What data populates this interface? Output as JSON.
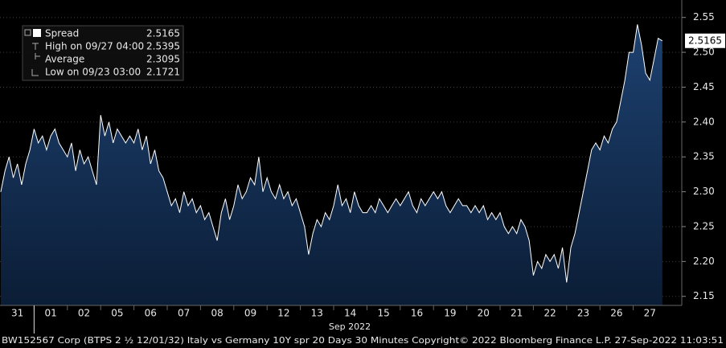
{
  "chart_data": {
    "type": "area",
    "footer": "BW152567 Corp (BTPS 2 ½ 12/01/32) Italy vs Germany 10Y spr 20 Days 30 Minutes  Copyright© 2022 Bloomberg Finance L.P.  27-Sep-2022 11:03:51",
    "x_label": "Sep 2022",
    "color": "#ffffff",
    "fill": "#15355c",
    "grid": true,
    "ylim": [
      2.137,
      2.575
    ],
    "yticks": [
      2.15,
      {
        "value": 2.2,
        "label": "2.20"
      },
      2.25,
      {
        "value": 2.3,
        "label": "2.30"
      },
      2.35,
      {
        "value": 2.4,
        "label": "2.40"
      },
      2.45,
      {
        "value": 2.5,
        "label": "2.50"
      },
      2.55
    ],
    "legend": [
      {
        "label": "Spread",
        "value": 2.5165
      },
      {
        "label": "High on 09/27 04:00",
        "value": 2.5395
      },
      {
        "label": "Average",
        "value": 2.3095
      },
      {
        "label": "Low on 09/23 03:00",
        "value": 2.1721
      }
    ],
    "days": [
      {
        "label": "31",
        "values": [
          2.3,
          2.33,
          2.35,
          2.32,
          2.34,
          2.31,
          2.34,
          2.36
        ]
      },
      {
        "label": "01",
        "values": [
          2.39,
          2.37,
          2.38,
          2.36,
          2.38,
          2.39,
          2.37,
          2.36
        ]
      },
      {
        "label": "02",
        "values": [
          2.35,
          2.37,
          2.33,
          2.36,
          2.34,
          2.35,
          2.33,
          2.31
        ]
      },
      {
        "label": "05",
        "values": [
          2.41,
          2.38,
          2.4,
          2.37,
          2.39,
          2.38,
          2.37,
          2.38
        ]
      },
      {
        "label": "06",
        "values": [
          2.37,
          2.39,
          2.36,
          2.38,
          2.34,
          2.36,
          2.33,
          2.32
        ]
      },
      {
        "label": "07",
        "values": [
          2.3,
          2.28,
          2.29,
          2.27,
          2.3,
          2.28,
          2.29,
          2.27
        ]
      },
      {
        "label": "08",
        "values": [
          2.28,
          2.26,
          2.27,
          2.25,
          2.23,
          2.27,
          2.29,
          2.26
        ]
      },
      {
        "label": "09",
        "values": [
          2.28,
          2.31,
          2.29,
          2.3,
          2.32,
          2.31,
          2.35,
          2.3
        ]
      },
      {
        "label": "12",
        "values": [
          2.32,
          2.3,
          2.29,
          2.31,
          2.29,
          2.3,
          2.28,
          2.29
        ]
      },
      {
        "label": "13",
        "values": [
          2.27,
          2.25,
          2.21,
          2.24,
          2.26,
          2.25,
          2.27,
          2.26
        ]
      },
      {
        "label": "14",
        "values": [
          2.28,
          2.31,
          2.28,
          2.29,
          2.27,
          2.3,
          2.28,
          2.27
        ]
      },
      {
        "label": "15",
        "values": [
          2.27,
          2.28,
          2.27,
          2.29,
          2.28,
          2.27,
          2.28,
          2.29
        ]
      },
      {
        "label": "16",
        "values": [
          2.28,
          2.29,
          2.3,
          2.28,
          2.27,
          2.29,
          2.28,
          2.29
        ]
      },
      {
        "label": "19",
        "values": [
          2.3,
          2.29,
          2.3,
          2.28,
          2.27,
          2.28,
          2.29,
          2.28
        ]
      },
      {
        "label": "20",
        "values": [
          2.28,
          2.27,
          2.28,
          2.27,
          2.28,
          2.26,
          2.27,
          2.26
        ]
      },
      {
        "label": "21",
        "values": [
          2.27,
          2.25,
          2.24,
          2.25,
          2.24,
          2.26,
          2.25,
          2.23
        ]
      },
      {
        "label": "22",
        "values": [
          2.18,
          2.2,
          2.19,
          2.21,
          2.2,
          2.21,
          2.19,
          2.22
        ]
      },
      {
        "label": "23",
        "values": [
          2.17,
          2.22,
          2.24,
          2.27,
          2.3,
          2.33,
          2.36,
          2.37
        ]
      },
      {
        "label": "26",
        "values": [
          2.36,
          2.38,
          2.37,
          2.39,
          2.4,
          2.43,
          2.46,
          2.5
        ]
      },
      {
        "label": "27",
        "values": [
          2.5,
          2.54,
          2.51,
          2.47,
          2.46,
          2.49,
          2.52,
          2.5165
        ]
      }
    ]
  }
}
